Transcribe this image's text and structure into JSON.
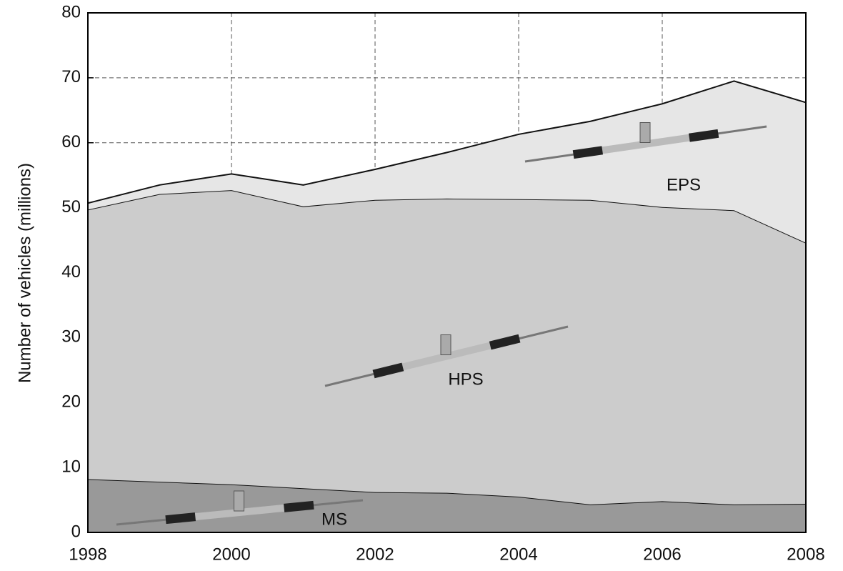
{
  "chart_data": {
    "type": "stacked_area",
    "y_label": "Number of vehicles (millions)",
    "x": [
      1998,
      1999,
      2000,
      2001,
      2002,
      2003,
      2004,
      2005,
      2006,
      2007,
      2008
    ],
    "series": [
      {
        "name": "MS",
        "color": "#999999",
        "values": [
          8.2,
          7.8,
          7.4,
          6.8,
          6.2,
          6.1,
          5.5,
          4.3,
          4.8,
          4.3,
          4.4
        ]
      },
      {
        "name": "HPS",
        "color": "#cccccc",
        "values": [
          41.5,
          44.3,
          45.3,
          43.4,
          45.0,
          45.3,
          45.8,
          46.9,
          45.3,
          45.3,
          40.2
        ]
      },
      {
        "name": "EPS",
        "color": "#e6e6e6",
        "values": [
          1.0,
          1.4,
          2.5,
          3.3,
          4.7,
          7.1,
          10.0,
          12.1,
          15.9,
          19.9,
          21.6
        ]
      }
    ],
    "xlim": [
      1998,
      2008
    ],
    "xticks": [
      1998,
      2000,
      2002,
      2004,
      2006,
      2008
    ],
    "ylim": [
      0,
      80
    ],
    "yticks": [
      0,
      10,
      20,
      30,
      40,
      50,
      60,
      70,
      80
    ],
    "grid": true
  }
}
